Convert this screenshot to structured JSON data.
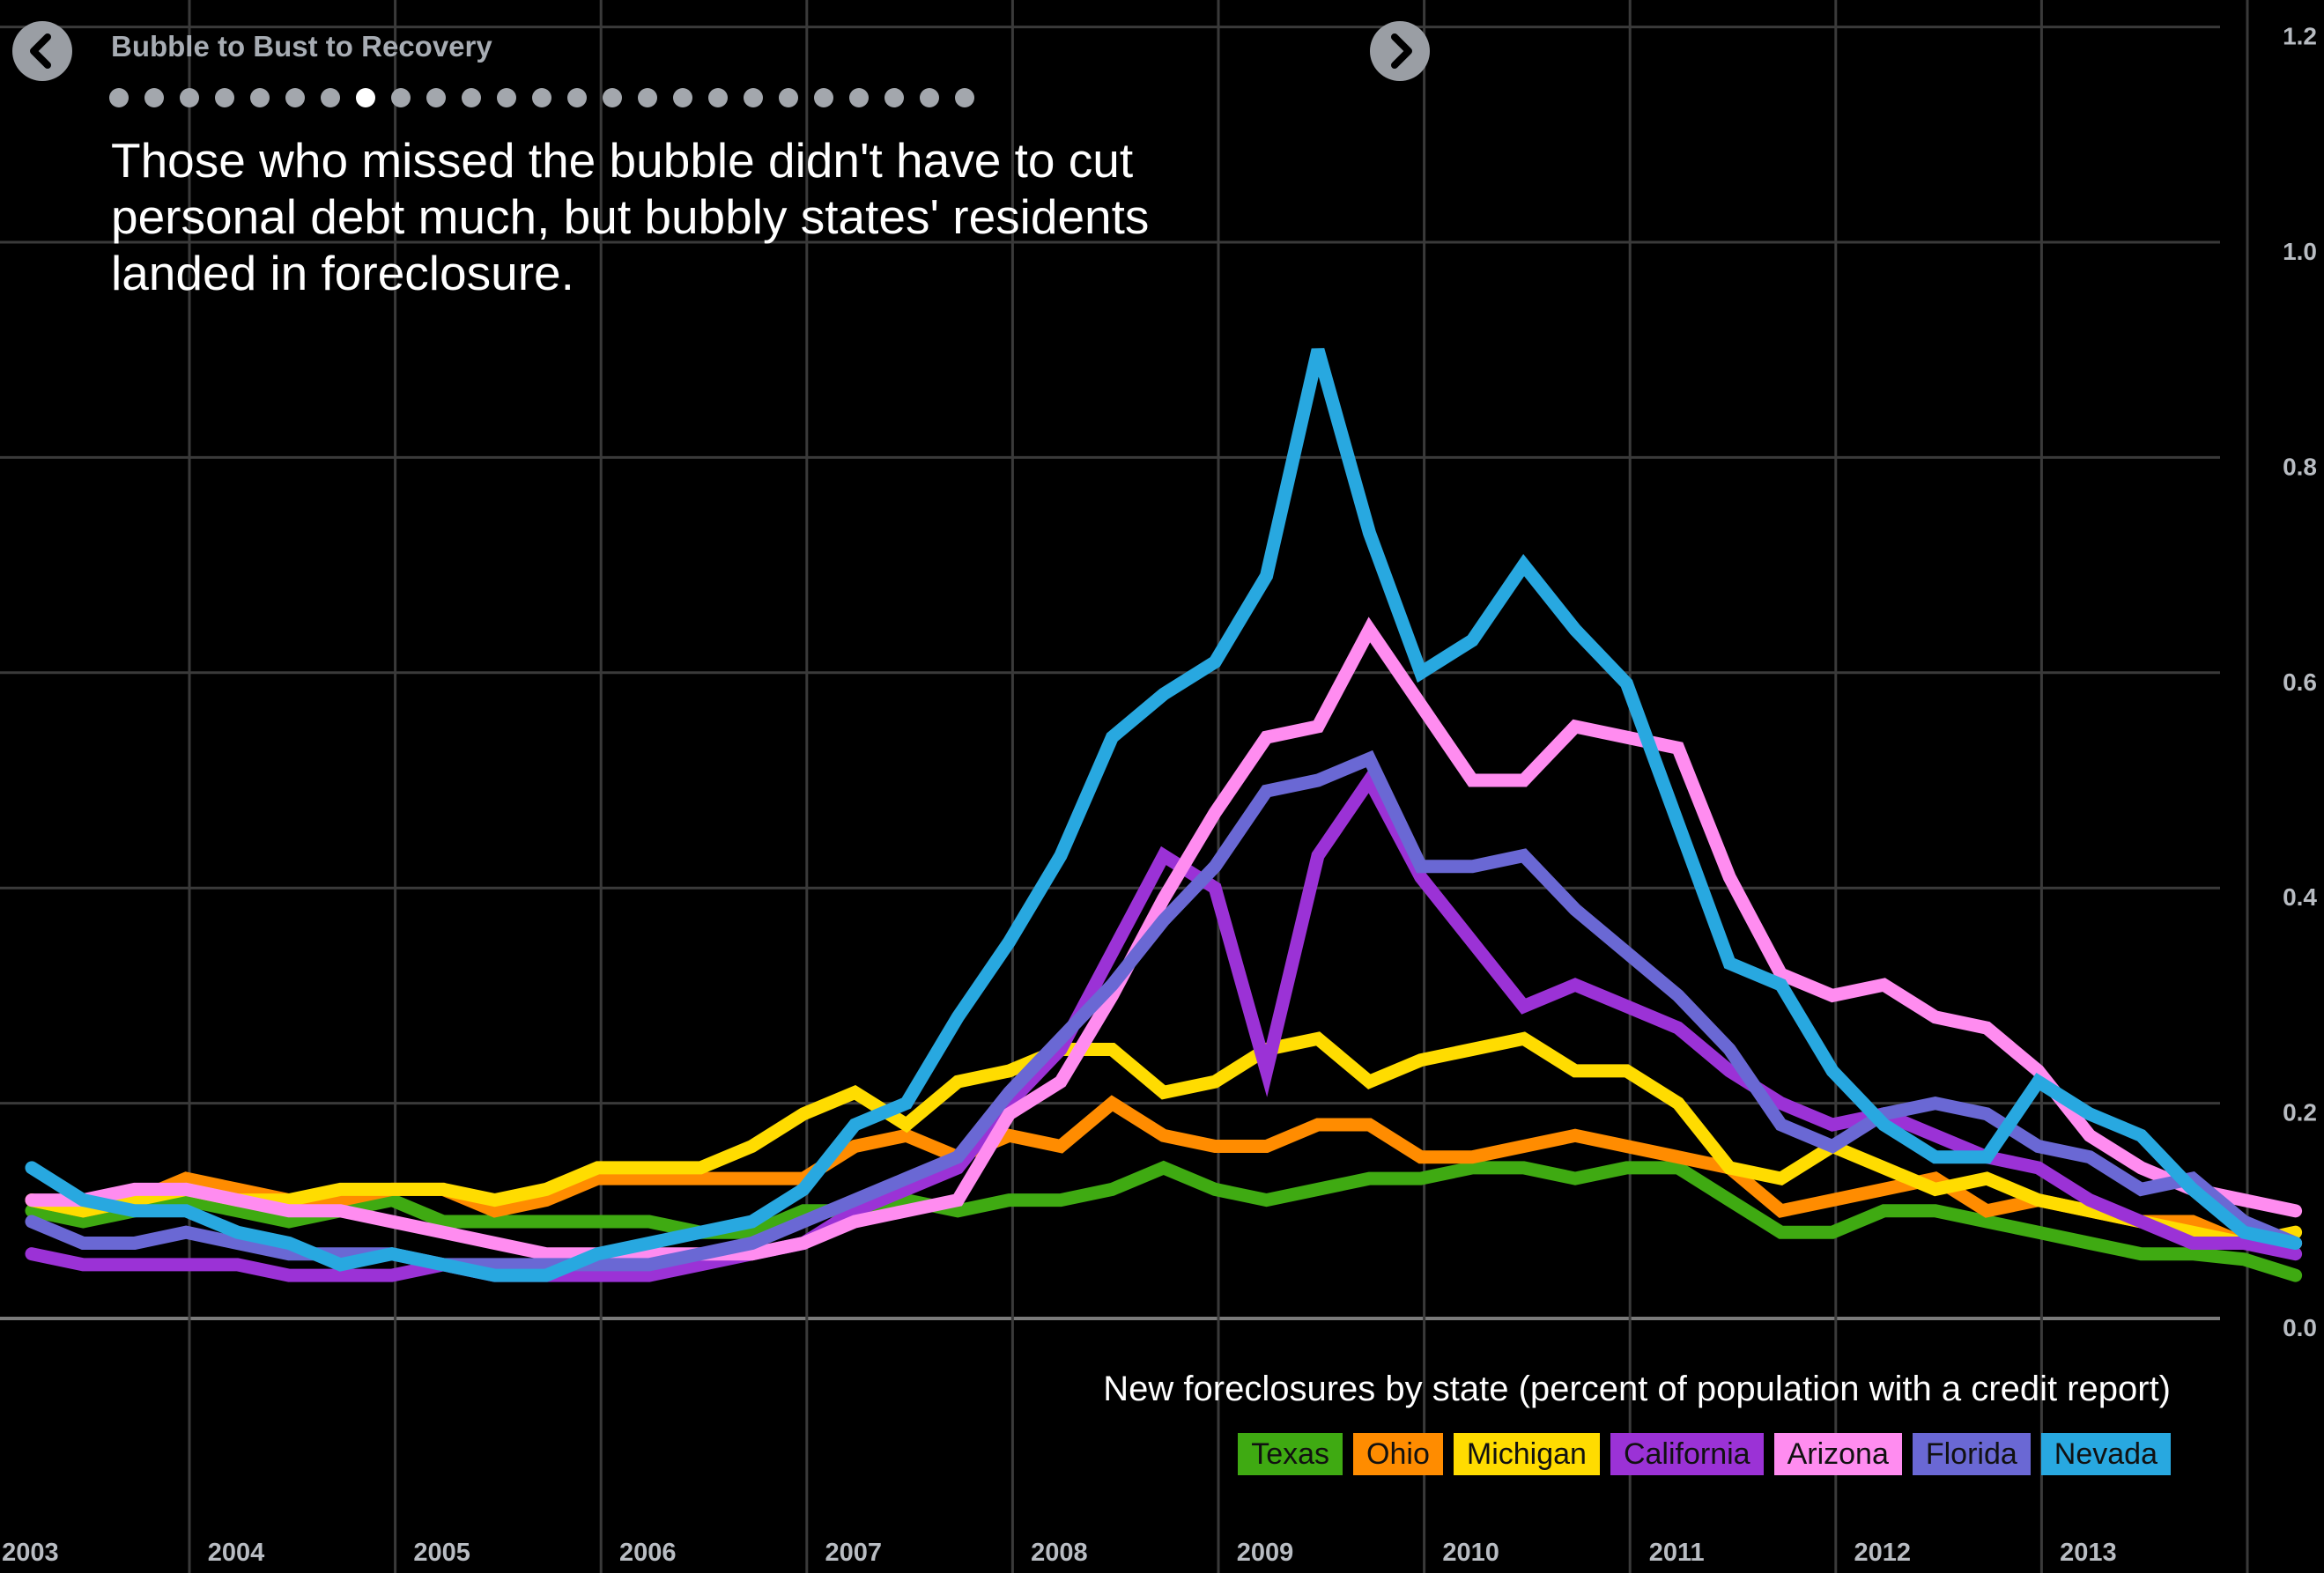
{
  "nav": {
    "story_title": "Bubble to Bust to Recovery",
    "dot_count": 25,
    "active_dot": 7
  },
  "headline": "Those who missed the bubble didn't have to cut personal debt much, but bubbly states' residents landed in foreclosure.",
  "caption": "New foreclosures by state (percent of population with a credit report)",
  "colors": {
    "background": "#000000",
    "grid": "#3a3a3a",
    "axis": "#7a7a7a"
  },
  "chart_data": {
    "type": "line",
    "x_start": "2003Q1",
    "ylim": [
      0,
      1.2
    ],
    "y_ticks": [
      0.0,
      0.2,
      0.4,
      0.6,
      0.8,
      1.0,
      1.2
    ],
    "y_tick_labels": [
      "0.0",
      "0.2",
      "0.4",
      "0.6",
      "0.8",
      "1.0",
      "1.2"
    ],
    "x_ticks": [
      "2003",
      "2004",
      "2005",
      "2006",
      "2007",
      "2008",
      "2009",
      "2010",
      "2011",
      "2012",
      "2013"
    ],
    "grid": true,
    "legend": "bottom-right",
    "series": [
      {
        "name": "Texas",
        "color": "#3faa12",
        "values": [
          0.1,
          0.09,
          0.1,
          0.11,
          0.1,
          0.09,
          0.1,
          0.11,
          0.09,
          0.09,
          0.09,
          0.09,
          0.09,
          0.08,
          0.08,
          0.1,
          0.1,
          0.11,
          0.1,
          0.11,
          0.11,
          0.12,
          0.14,
          0.12,
          0.11,
          0.12,
          0.13,
          0.13,
          0.14,
          0.14,
          0.13,
          0.14,
          0.14,
          0.11,
          0.08,
          0.08,
          0.1,
          0.1,
          0.09,
          0.08,
          0.07,
          0.06,
          0.06,
          0.055,
          0.04
        ]
      },
      {
        "name": "Ohio",
        "color": "#ff8c00",
        "values": [
          0.11,
          0.1,
          0.11,
          0.13,
          0.12,
          0.11,
          0.11,
          0.12,
          0.12,
          0.1,
          0.11,
          0.13,
          0.13,
          0.13,
          0.13,
          0.13,
          0.16,
          0.17,
          0.15,
          0.17,
          0.16,
          0.2,
          0.17,
          0.16,
          0.16,
          0.18,
          0.18,
          0.15,
          0.15,
          0.16,
          0.17,
          0.16,
          0.15,
          0.14,
          0.1,
          0.11,
          0.12,
          0.13,
          0.1,
          0.11,
          0.1,
          0.09,
          0.09,
          0.07,
          0.07
        ]
      },
      {
        "name": "Michigan",
        "color": "#ffdc00",
        "values": [
          0.11,
          0.1,
          0.11,
          0.12,
          0.11,
          0.11,
          0.12,
          0.12,
          0.12,
          0.11,
          0.12,
          0.14,
          0.14,
          0.14,
          0.16,
          0.19,
          0.21,
          0.18,
          0.22,
          0.23,
          0.25,
          0.25,
          0.21,
          0.22,
          0.25,
          0.26,
          0.22,
          0.24,
          0.25,
          0.26,
          0.23,
          0.23,
          0.2,
          0.14,
          0.13,
          0.16,
          0.14,
          0.12,
          0.13,
          0.11,
          0.1,
          0.09,
          0.08,
          0.07,
          0.08
        ]
      },
      {
        "name": "California",
        "color": "#9b32d6",
        "values": [
          0.06,
          0.05,
          0.05,
          0.05,
          0.05,
          0.04,
          0.04,
          0.04,
          0.05,
          0.04,
          0.04,
          0.04,
          0.04,
          0.05,
          0.06,
          0.07,
          0.1,
          0.12,
          0.14,
          0.2,
          0.25,
          0.34,
          0.43,
          0.4,
          0.23,
          0.43,
          0.5,
          0.41,
          0.35,
          0.29,
          0.31,
          0.29,
          0.27,
          0.23,
          0.2,
          0.18,
          0.19,
          0.17,
          0.15,
          0.14,
          0.11,
          0.09,
          0.07,
          0.07,
          0.06
        ]
      },
      {
        "name": "Arizona",
        "color": "#ff8cf0",
        "values": [
          0.11,
          0.11,
          0.12,
          0.12,
          0.11,
          0.1,
          0.1,
          0.09,
          0.08,
          0.07,
          0.06,
          0.06,
          0.06,
          0.06,
          0.06,
          0.07,
          0.09,
          0.1,
          0.11,
          0.19,
          0.22,
          0.3,
          0.39,
          0.47,
          0.54,
          0.55,
          0.64,
          0.57,
          0.5,
          0.5,
          0.55,
          0.54,
          0.53,
          0.41,
          0.32,
          0.3,
          0.31,
          0.28,
          0.27,
          0.23,
          0.17,
          0.14,
          0.12,
          0.11,
          0.1
        ]
      },
      {
        "name": "Florida",
        "color": "#6a68d4",
        "values": [
          0.09,
          0.07,
          0.07,
          0.08,
          0.07,
          0.06,
          0.06,
          0.06,
          0.05,
          0.05,
          0.05,
          0.05,
          0.05,
          0.06,
          0.07,
          0.09,
          0.11,
          0.13,
          0.15,
          0.21,
          0.26,
          0.31,
          0.37,
          0.42,
          0.49,
          0.5,
          0.52,
          0.42,
          0.42,
          0.43,
          0.38,
          0.34,
          0.3,
          0.25,
          0.18,
          0.16,
          0.19,
          0.2,
          0.19,
          0.16,
          0.15,
          0.12,
          0.13,
          0.09,
          0.07
        ]
      },
      {
        "name": "Nevada",
        "color": "#28a8e0",
        "values": [
          0.14,
          0.11,
          0.1,
          0.1,
          0.08,
          0.07,
          0.05,
          0.06,
          0.05,
          0.04,
          0.04,
          0.06,
          0.07,
          0.08,
          0.09,
          0.12,
          0.18,
          0.2,
          0.28,
          0.35,
          0.43,
          0.54,
          0.58,
          0.61,
          0.69,
          0.9,
          0.73,
          0.6,
          0.63,
          0.7,
          0.64,
          0.59,
          0.46,
          0.33,
          0.31,
          0.23,
          0.18,
          0.15,
          0.15,
          0.22,
          0.19,
          0.17,
          0.12,
          0.08,
          0.07
        ]
      }
    ]
  }
}
